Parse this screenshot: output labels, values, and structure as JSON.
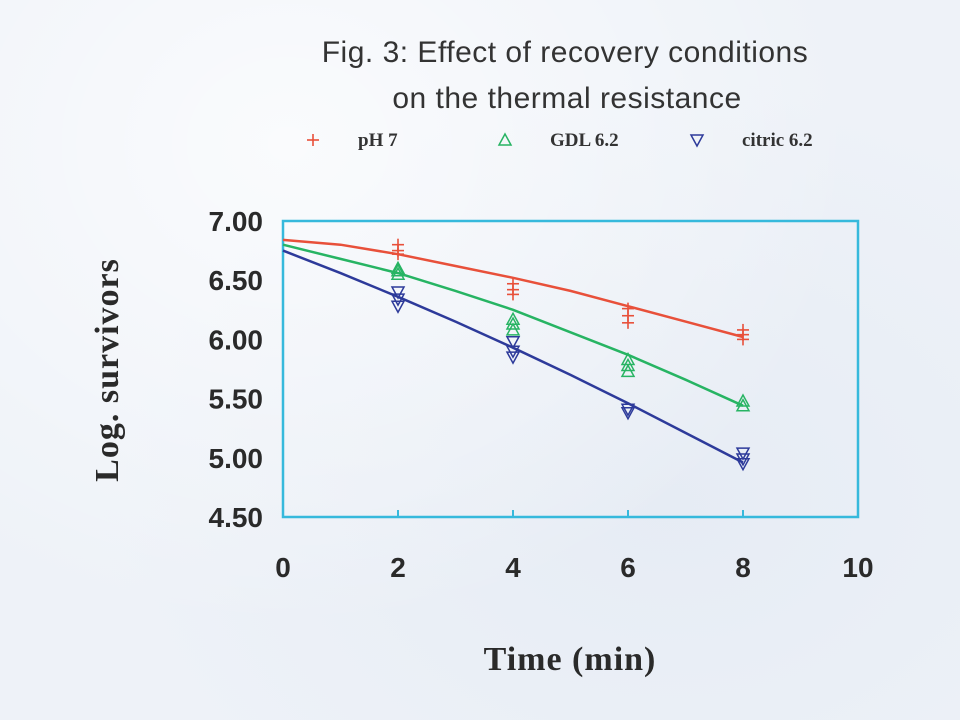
{
  "title_line1": "Fig. 3: Effect of recovery conditions",
  "title_line2": "on  the thermal resistance",
  "colors": {
    "frame": "#36b9dc",
    "ph7": "#e8503a",
    "gdl": "#27b463",
    "citric": "#2d3a9a",
    "text": "#2a2a2a"
  },
  "chart_data": {
    "type": "scatter",
    "xlabel": "Time (min)",
    "ylabel": "Log. survivors",
    "xlim": [
      0,
      10
    ],
    "ylim": [
      4.5,
      7.0
    ],
    "xticks": [
      "0",
      "2",
      "4",
      "6",
      "8",
      "10"
    ],
    "yticks": [
      "7.00",
      "6.50",
      "6.00",
      "5.50",
      "5.00",
      "4.50"
    ],
    "grid": false,
    "legend_position": "top",
    "series": [
      {
        "name": "pH 7",
        "marker": "+",
        "points": [
          [
            2,
            6.8
          ],
          [
            2,
            6.75
          ],
          [
            2,
            6.72
          ],
          [
            4,
            6.47
          ],
          [
            4,
            6.42
          ],
          [
            4,
            6.38
          ],
          [
            6,
            6.26
          ],
          [
            6,
            6.2
          ],
          [
            6,
            6.14
          ],
          [
            8,
            6.08
          ],
          [
            8,
            6.04
          ],
          [
            8,
            6.0
          ]
        ],
        "fit": [
          [
            0,
            6.84
          ],
          [
            1,
            6.8
          ],
          [
            2,
            6.72
          ],
          [
            3,
            6.62
          ],
          [
            4,
            6.52
          ],
          [
            5,
            6.41
          ],
          [
            6,
            6.28
          ],
          [
            7,
            6.15
          ],
          [
            8,
            6.02
          ]
        ]
      },
      {
        "name": "GDL 6.2",
        "marker": "triangle-up",
        "points": [
          [
            2,
            6.6
          ],
          [
            2,
            6.58
          ],
          [
            2,
            6.55
          ],
          [
            4,
            6.17
          ],
          [
            4,
            6.13
          ],
          [
            4,
            6.08
          ],
          [
            6,
            5.83
          ],
          [
            6,
            5.78
          ],
          [
            6,
            5.73
          ],
          [
            8,
            5.48
          ],
          [
            8,
            5.44
          ]
        ],
        "fit": [
          [
            0,
            6.8
          ],
          [
            1,
            6.68
          ],
          [
            2,
            6.56
          ],
          [
            3,
            6.41
          ],
          [
            4,
            6.25
          ],
          [
            5,
            6.06
          ],
          [
            6,
            5.87
          ],
          [
            7,
            5.66
          ],
          [
            8,
            5.44
          ]
        ]
      },
      {
        "name": "citric 6.2",
        "marker": "triangle-down",
        "points": [
          [
            2,
            6.4
          ],
          [
            2,
            6.34
          ],
          [
            2,
            6.28
          ],
          [
            4,
            5.98
          ],
          [
            4,
            5.9
          ],
          [
            4,
            5.85
          ],
          [
            6,
            5.41
          ],
          [
            6,
            5.38
          ],
          [
            8,
            5.04
          ],
          [
            8,
            4.99
          ],
          [
            8,
            4.95
          ]
        ],
        "fit": [
          [
            0,
            6.75
          ],
          [
            1,
            6.56
          ],
          [
            2,
            6.36
          ],
          [
            3,
            6.15
          ],
          [
            4,
            5.93
          ],
          [
            5,
            5.7
          ],
          [
            6,
            5.46
          ],
          [
            7,
            5.21
          ],
          [
            8,
            4.96
          ]
        ]
      }
    ]
  }
}
